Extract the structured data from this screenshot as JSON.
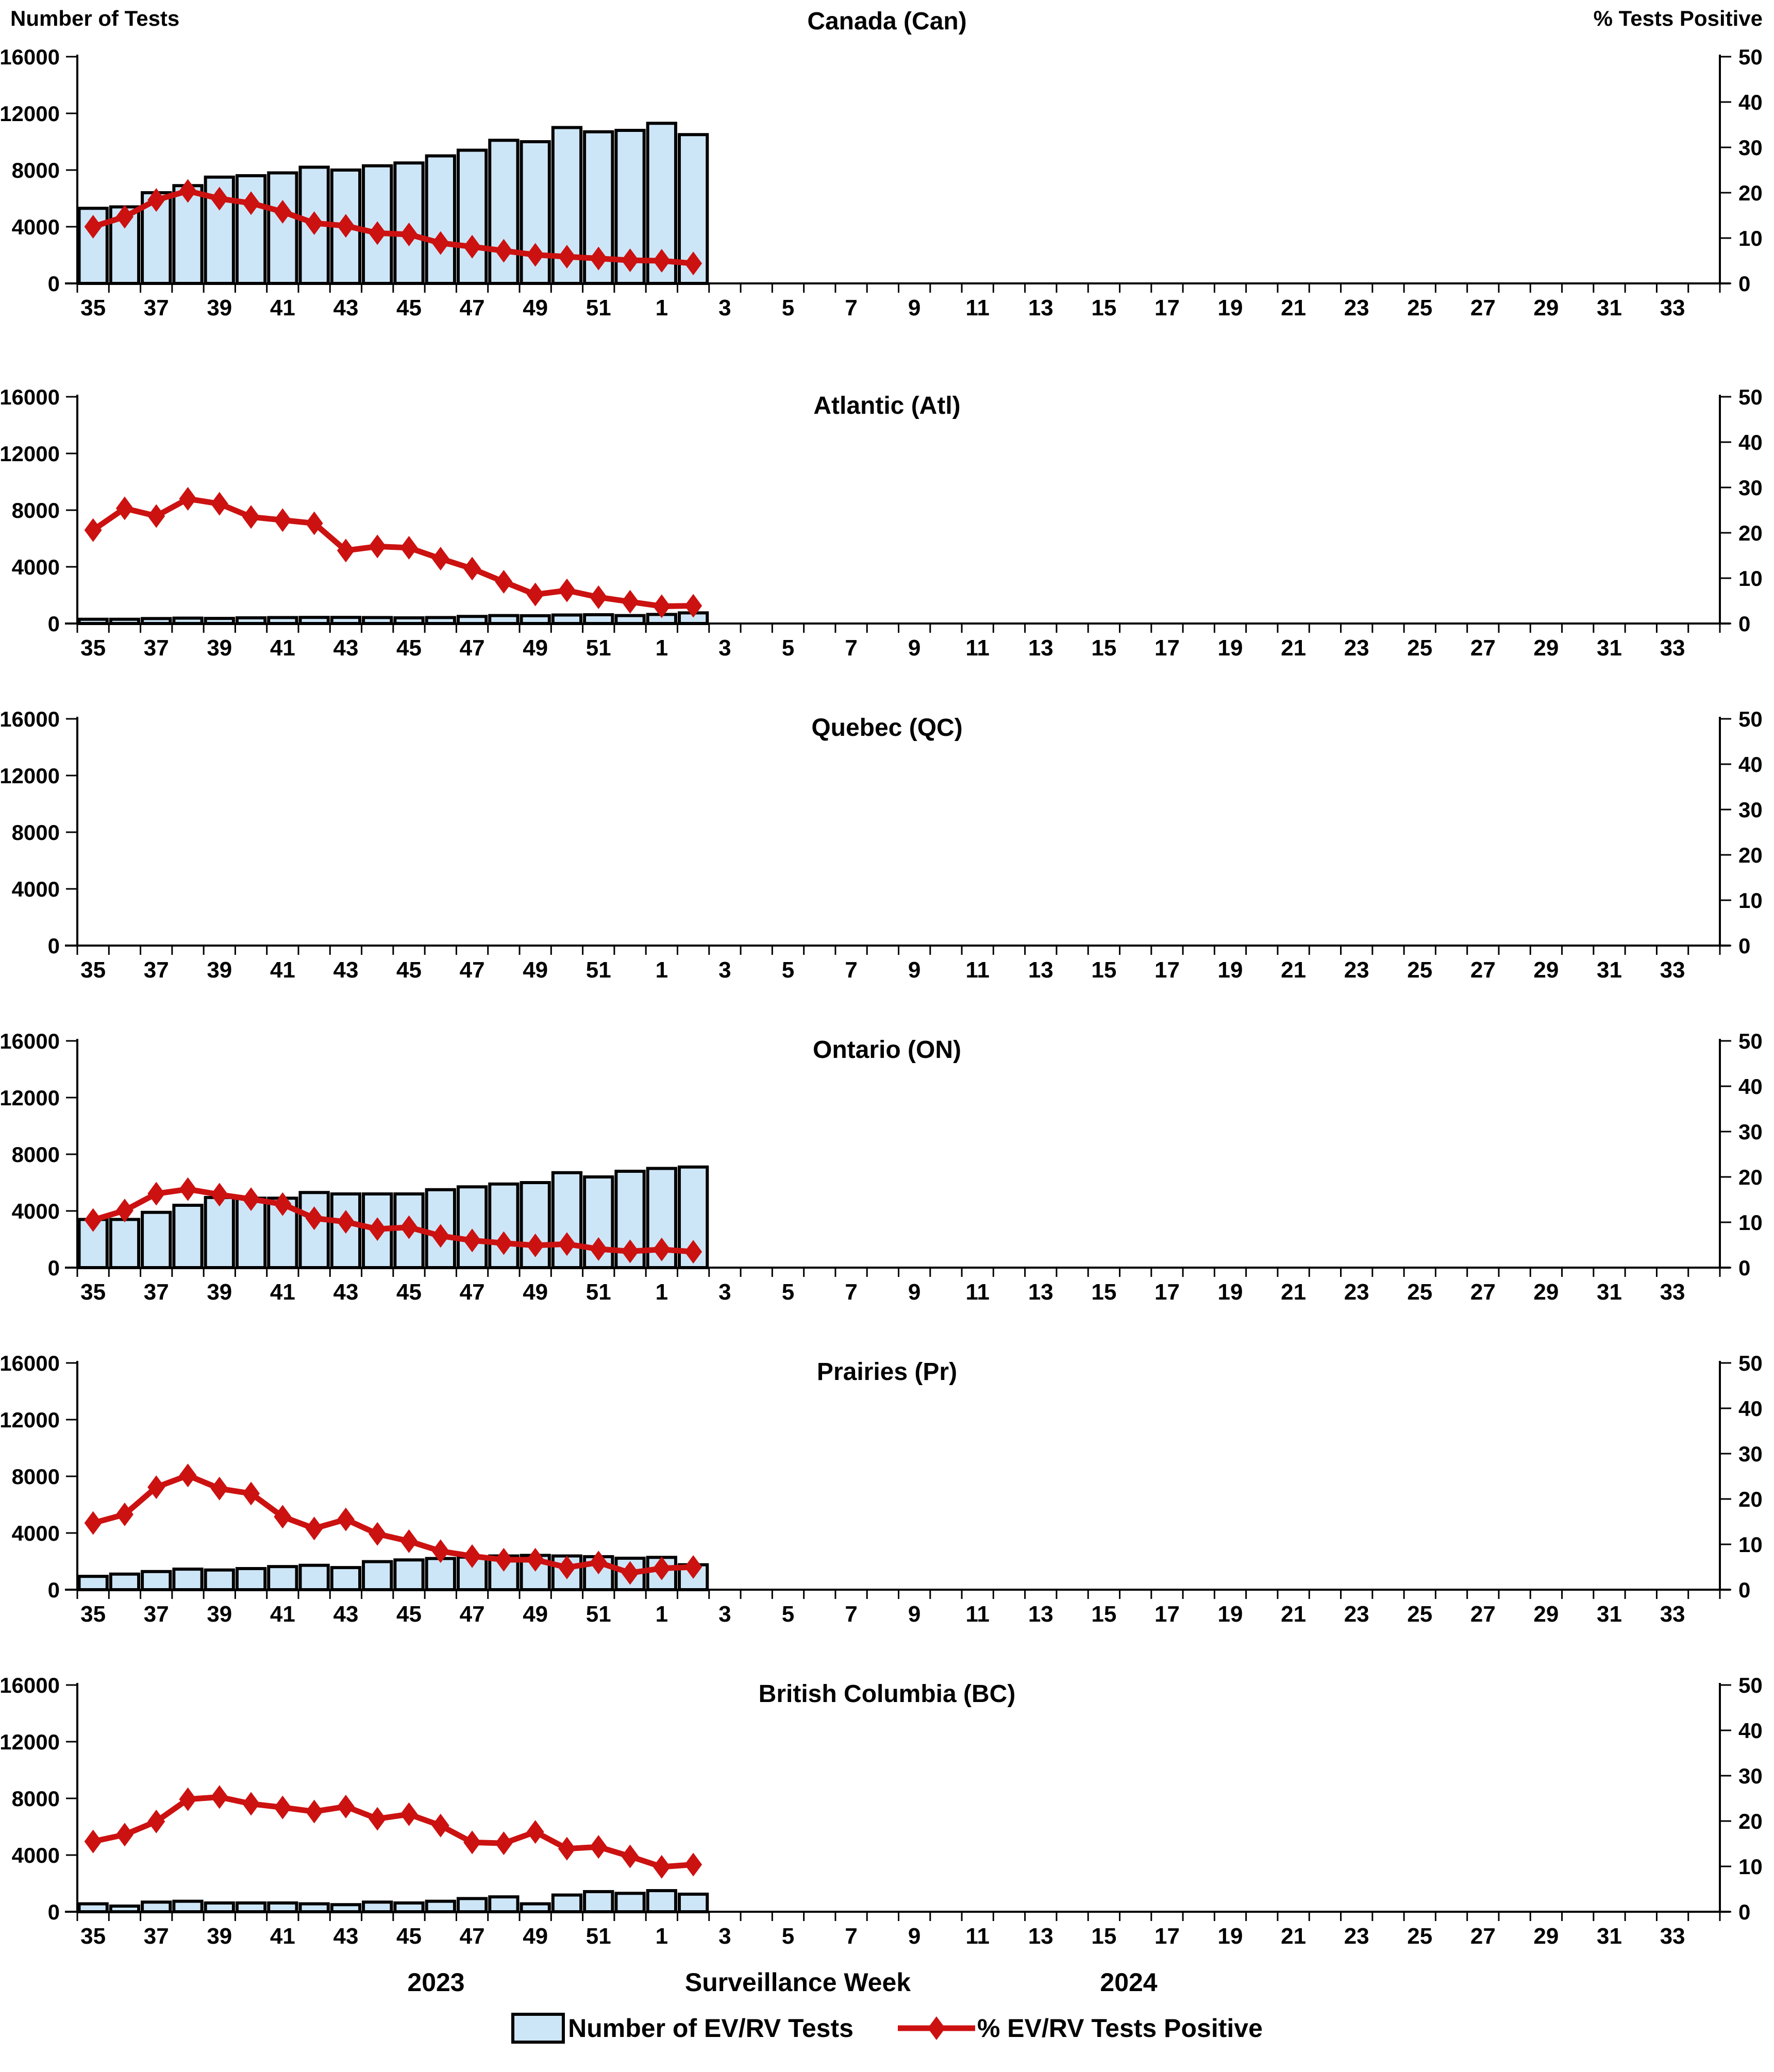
{
  "header": {
    "left_axis_title": "Number of Tests",
    "right_axis_title": "% Tests Positive"
  },
  "footer": {
    "year_left": "2023",
    "x_axis_title": "Surveillance Week",
    "year_right": "2024"
  },
  "legend": {
    "bars_label": "Number of EV/RV Tests",
    "line_label": "% EV/RV Tests Positive"
  },
  "colors": {
    "bar_fill": "#CDE6F7",
    "bar_stroke": "#000000",
    "line": "#CC1111",
    "axis": "#000000"
  },
  "axes": {
    "left_ticks": [
      0,
      4000,
      8000,
      12000,
      16000
    ],
    "right_ticks": [
      0,
      10,
      20,
      30,
      40,
      50
    ],
    "left_max": 16000,
    "right_max": 50,
    "week_slots": 52,
    "x_tick_labels": [
      "35",
      "37",
      "39",
      "41",
      "43",
      "45",
      "47",
      "49",
      "51",
      "1",
      "3",
      "5",
      "7",
      "9",
      "11",
      "13",
      "15",
      "17",
      "19",
      "21",
      "23",
      "25",
      "27",
      "29",
      "31",
      "33"
    ]
  },
  "chart_data": [
    {
      "type": "bar",
      "title": "Canada (Can)",
      "xlabel": "Surveillance Week",
      "ylabel_left": "Number of Tests",
      "ylabel_right": "% Tests Positive",
      "ylim_left": [
        0,
        16000
      ],
      "ylim_right": [
        0,
        50
      ],
      "categories": [
        "35",
        "36",
        "37",
        "38",
        "39",
        "40",
        "41",
        "42",
        "43",
        "44",
        "45",
        "46",
        "47",
        "48",
        "49",
        "50",
        "51",
        "52",
        "1",
        "2"
      ],
      "series": [
        {
          "name": "Number of EV/RV Tests",
          "axis": "left",
          "type": "bar",
          "values": [
            5300,
            5400,
            6400,
            6900,
            7500,
            7600,
            7800,
            8200,
            8000,
            8300,
            8500,
            9000,
            9400,
            10100,
            10000,
            11000,
            10700,
            10800,
            11300,
            10500
          ]
        },
        {
          "name": "% EV/RV Tests Positive",
          "axis": "right",
          "type": "line",
          "values": [
            12.5,
            14.7,
            18.4,
            20.4,
            18.7,
            17.7,
            15.8,
            13.3,
            12.7,
            11.1,
            10.8,
            8.9,
            8.1,
            7.2,
            6.3,
            5.9,
            5.5,
            5.1,
            5.0,
            4.4
          ]
        }
      ]
    },
    {
      "type": "bar",
      "title": "Atlantic (Atl)",
      "xlabel": "Surveillance Week",
      "ylabel_left": "Number of Tests",
      "ylabel_right": "% Tests Positive",
      "ylim_left": [
        0,
        16000
      ],
      "ylim_right": [
        0,
        50
      ],
      "categories": [
        "35",
        "36",
        "37",
        "38",
        "39",
        "40",
        "41",
        "42",
        "43",
        "44",
        "45",
        "46",
        "47",
        "48",
        "49",
        "50",
        "51",
        "52",
        "1",
        "2"
      ],
      "series": [
        {
          "name": "Number of EV/RV Tests",
          "axis": "left",
          "type": "bar",
          "values": [
            300,
            300,
            350,
            380,
            360,
            400,
            420,
            430,
            430,
            420,
            400,
            420,
            500,
            560,
            550,
            600,
            620,
            560,
            640,
            750
          ]
        },
        {
          "name": "% EV/RV Tests Positive",
          "axis": "right",
          "type": "line",
          "values": [
            20.6,
            25.4,
            23.7,
            27.5,
            26.4,
            23.5,
            22.8,
            22.1,
            16.1,
            17.0,
            16.7,
            14.3,
            12.1,
            9.2,
            6.4,
            7.3,
            5.8,
            4.8,
            3.8,
            3.9
          ]
        }
      ]
    },
    {
      "type": "bar",
      "title": "Quebec (QC)",
      "xlabel": "Surveillance Week",
      "ylabel_left": "Number of Tests",
      "ylabel_right": "% Tests Positive",
      "ylim_left": [
        0,
        16000
      ],
      "ylim_right": [
        0,
        50
      ],
      "categories": [
        "35",
        "36",
        "37",
        "38",
        "39",
        "40",
        "41",
        "42",
        "43",
        "44",
        "45",
        "46",
        "47",
        "48",
        "49",
        "50",
        "51",
        "52",
        "1",
        "2"
      ],
      "series": [
        {
          "name": "Number of EV/RV Tests",
          "axis": "left",
          "type": "bar",
          "values": []
        },
        {
          "name": "% EV/RV Tests Positive",
          "axis": "right",
          "type": "line",
          "values": []
        }
      ]
    },
    {
      "type": "bar",
      "title": "Ontario (ON)",
      "xlabel": "Surveillance Week",
      "ylabel_left": "Number of Tests",
      "ylabel_right": "% Tests Positive",
      "ylim_left": [
        0,
        16000
      ],
      "ylim_right": [
        0,
        50
      ],
      "categories": [
        "35",
        "36",
        "37",
        "38",
        "39",
        "40",
        "41",
        "42",
        "43",
        "44",
        "45",
        "46",
        "47",
        "48",
        "49",
        "50",
        "51",
        "52",
        "1",
        "2"
      ],
      "series": [
        {
          "name": "Number of EV/RV Tests",
          "axis": "left",
          "type": "bar",
          "values": [
            3400,
            3400,
            3900,
            4400,
            4950,
            4900,
            4900,
            5300,
            5200,
            5200,
            5200,
            5500,
            5700,
            5900,
            6000,
            6700,
            6400,
            6800,
            7000,
            7100
          ]
        },
        {
          "name": "% EV/RV Tests Positive",
          "axis": "right",
          "type": "line",
          "values": [
            10.5,
            12.6,
            16.3,
            17.3,
            16.1,
            15.1,
            14.0,
            10.9,
            10.1,
            8.5,
            8.9,
            7.0,
            6.0,
            5.4,
            4.9,
            5.2,
            4.1,
            3.6,
            4.0,
            3.5
          ]
        }
      ]
    },
    {
      "type": "bar",
      "title": "Prairies (Pr)",
      "xlabel": "Surveillance Week",
      "ylabel_left": "Number of Tests",
      "ylabel_right": "% Tests Positive",
      "ylim_left": [
        0,
        16000
      ],
      "ylim_right": [
        0,
        50
      ],
      "categories": [
        "35",
        "36",
        "37",
        "38",
        "39",
        "40",
        "41",
        "42",
        "43",
        "44",
        "45",
        "46",
        "47",
        "48",
        "49",
        "50",
        "51",
        "52",
        "1",
        "2"
      ],
      "series": [
        {
          "name": "Number of EV/RV Tests",
          "axis": "left",
          "type": "bar",
          "values": [
            940,
            1100,
            1280,
            1450,
            1390,
            1490,
            1630,
            1720,
            1560,
            1980,
            2100,
            2200,
            2300,
            2380,
            2420,
            2380,
            2330,
            2220,
            2280,
            1760
          ]
        },
        {
          "name": "% EV/RV Tests Positive",
          "axis": "right",
          "type": "line",
          "values": [
            14.7,
            16.6,
            22.6,
            25.2,
            22.3,
            21.2,
            16.1,
            13.5,
            15.5,
            12.3,
            10.7,
            8.5,
            7.4,
            6.6,
            6.6,
            4.9,
            6.0,
            3.7,
            4.7,
            5.0
          ]
        }
      ]
    },
    {
      "type": "bar",
      "title": "British Columbia (BC)",
      "xlabel": "Surveillance Week",
      "ylabel_left": "Number of Tests",
      "ylabel_right": "% Tests Positive",
      "ylim_left": [
        0,
        16000
      ],
      "ylim_right": [
        0,
        50
      ],
      "categories": [
        "35",
        "36",
        "37",
        "38",
        "39",
        "40",
        "41",
        "42",
        "43",
        "44",
        "45",
        "46",
        "47",
        "48",
        "49",
        "50",
        "51",
        "52",
        "1",
        "2"
      ],
      "series": [
        {
          "name": "Number of EV/RV Tests",
          "axis": "left",
          "type": "bar",
          "values": [
            560,
            400,
            680,
            740,
            620,
            620,
            620,
            560,
            500,
            680,
            620,
            740,
            930,
            1050,
            560,
            1180,
            1420,
            1300,
            1490,
            1240
          ]
        },
        {
          "name": "% EV/RV Tests Positive",
          "axis": "right",
          "type": "line",
          "values": [
            15.5,
            17.0,
            19.9,
            24.8,
            25.3,
            23.8,
            23.0,
            22.1,
            23.2,
            20.5,
            21.5,
            19.0,
            15.3,
            15.1,
            17.6,
            13.9,
            14.3,
            12.2,
            9.9,
            10.4
          ]
        }
      ]
    }
  ]
}
